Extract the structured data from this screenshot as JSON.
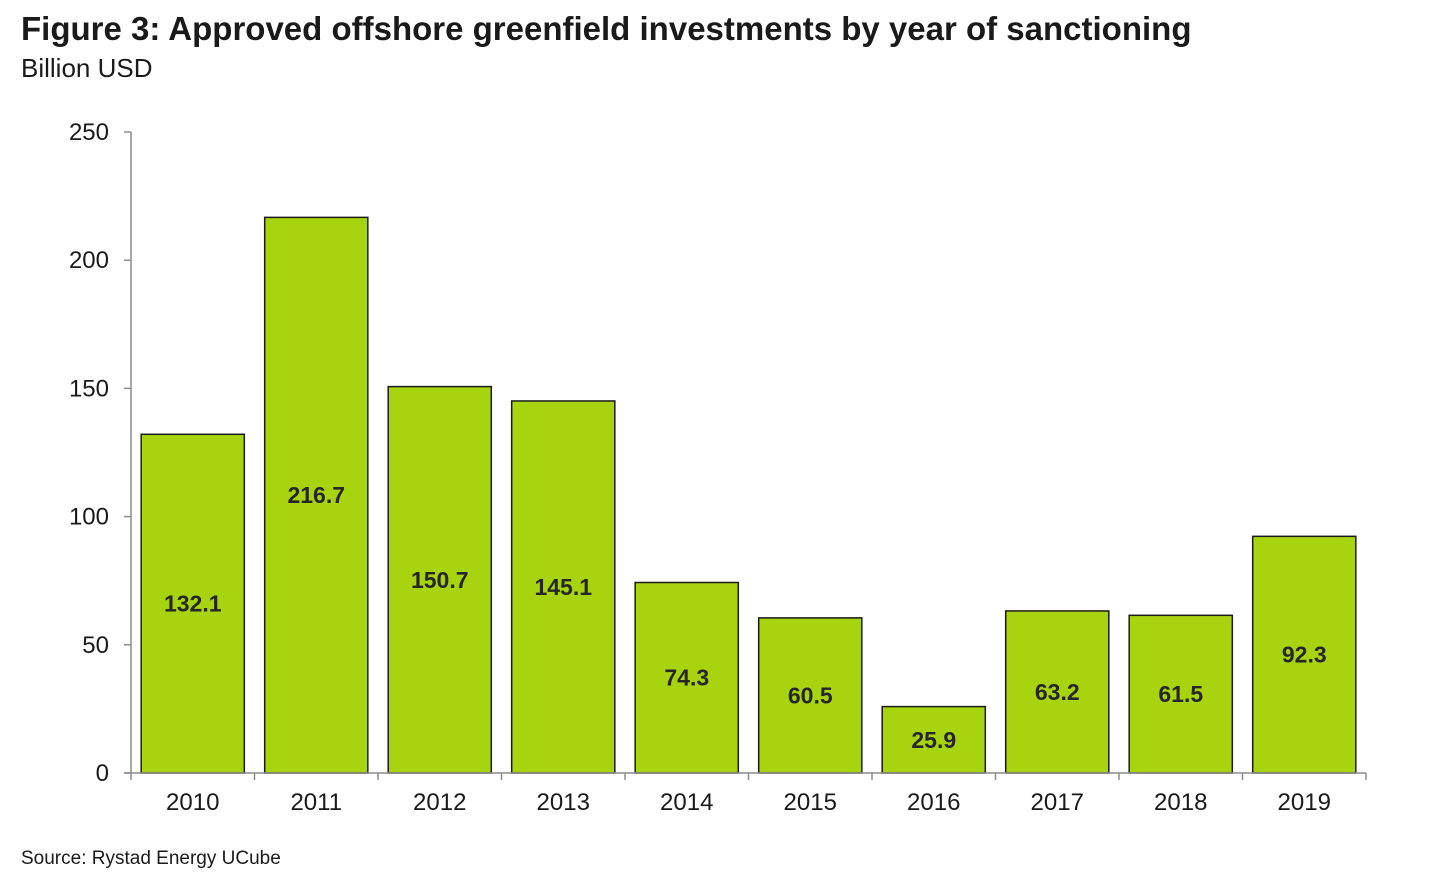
{
  "header": {
    "title": "Figure 3: Approved offshore greenfield investments by year of sanctioning",
    "subtitle": "Billion USD"
  },
  "footer": {
    "source": "Source: Rystad Energy UCube"
  },
  "colors": {
    "bar_fill": "#a8d30f",
    "bar_stroke": "#1a1a1a",
    "axis": "#8c8c8c"
  },
  "chart_data": {
    "type": "bar",
    "title": "Figure 3: Approved offshore greenfield investments by year of sanctioning",
    "subtitle": "Billion USD",
    "categories": [
      "2010",
      "2011",
      "2012",
      "2013",
      "2014",
      "2015",
      "2016",
      "2017",
      "2018",
      "2019"
    ],
    "values": [
      132.1,
      216.7,
      150.7,
      145.1,
      74.3,
      60.5,
      25.9,
      63.2,
      61.5,
      92.3
    ],
    "data_labels": [
      "132.1",
      "216.7",
      "150.7",
      "145.1",
      "74.3",
      "60.5",
      "25.9",
      "63.2",
      "61.5",
      "92.3"
    ],
    "xlabel": "",
    "ylabel": "",
    "ylim": [
      0,
      250
    ],
    "yticks": [
      0,
      50,
      100,
      150,
      200,
      250
    ],
    "grid": false,
    "legend": "none"
  }
}
